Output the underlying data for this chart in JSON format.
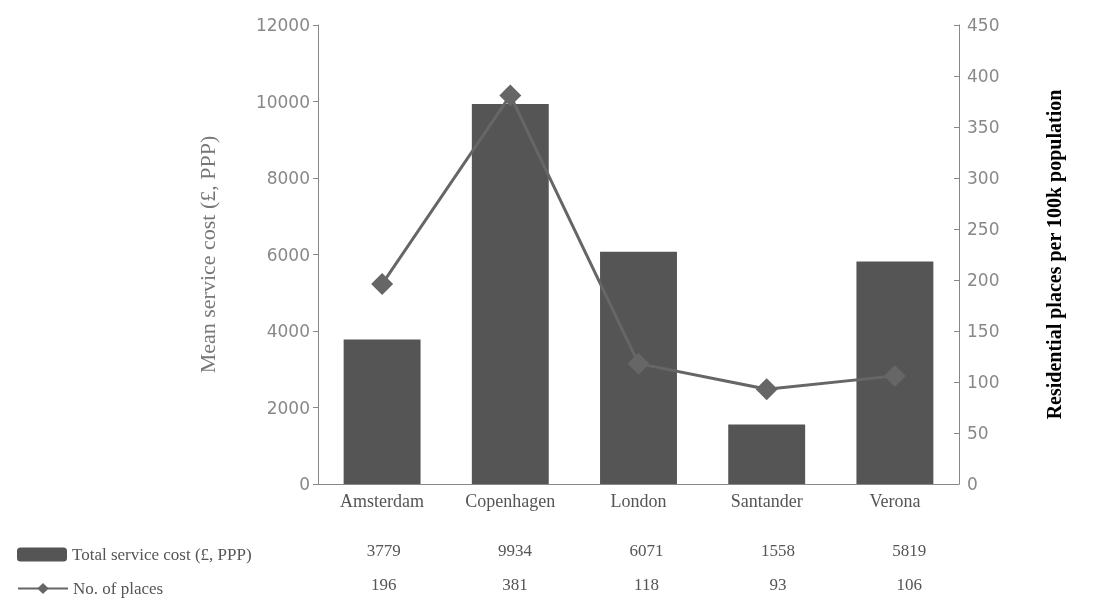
{
  "chart_data": {
    "type": "bar",
    "categories": [
      "Amsterdam",
      "Copenhagen",
      "London",
      "Santander",
      "Verona"
    ],
    "series": [
      {
        "name": "Total service cost (£, PPP)",
        "color": "#555555",
        "values": [
          3779,
          9934,
          6071,
          1558,
          5819
        ]
      },
      {
        "name": "No. of places",
        "type": "line",
        "axis": "y2",
        "color": "#666666",
        "values": [
          196,
          381,
          118,
          93,
          106
        ]
      }
    ],
    "ylabel": "Mean service cost (£, PPP)",
    "y2label": "Residential places per 100k population",
    "ylim": [
      0,
      12000
    ],
    "yticks": [
      0,
      2000,
      4000,
      6000,
      8000,
      10000,
      12000
    ],
    "y2lim": [
      0,
      450
    ],
    "y2ticks": [
      0,
      50,
      100,
      150,
      200,
      250,
      300,
      350,
      400,
      450
    ],
    "data_labels": true,
    "legend": "bottom left",
    "marker": "diamond",
    "line_style": "solid",
    "grid": false
  }
}
